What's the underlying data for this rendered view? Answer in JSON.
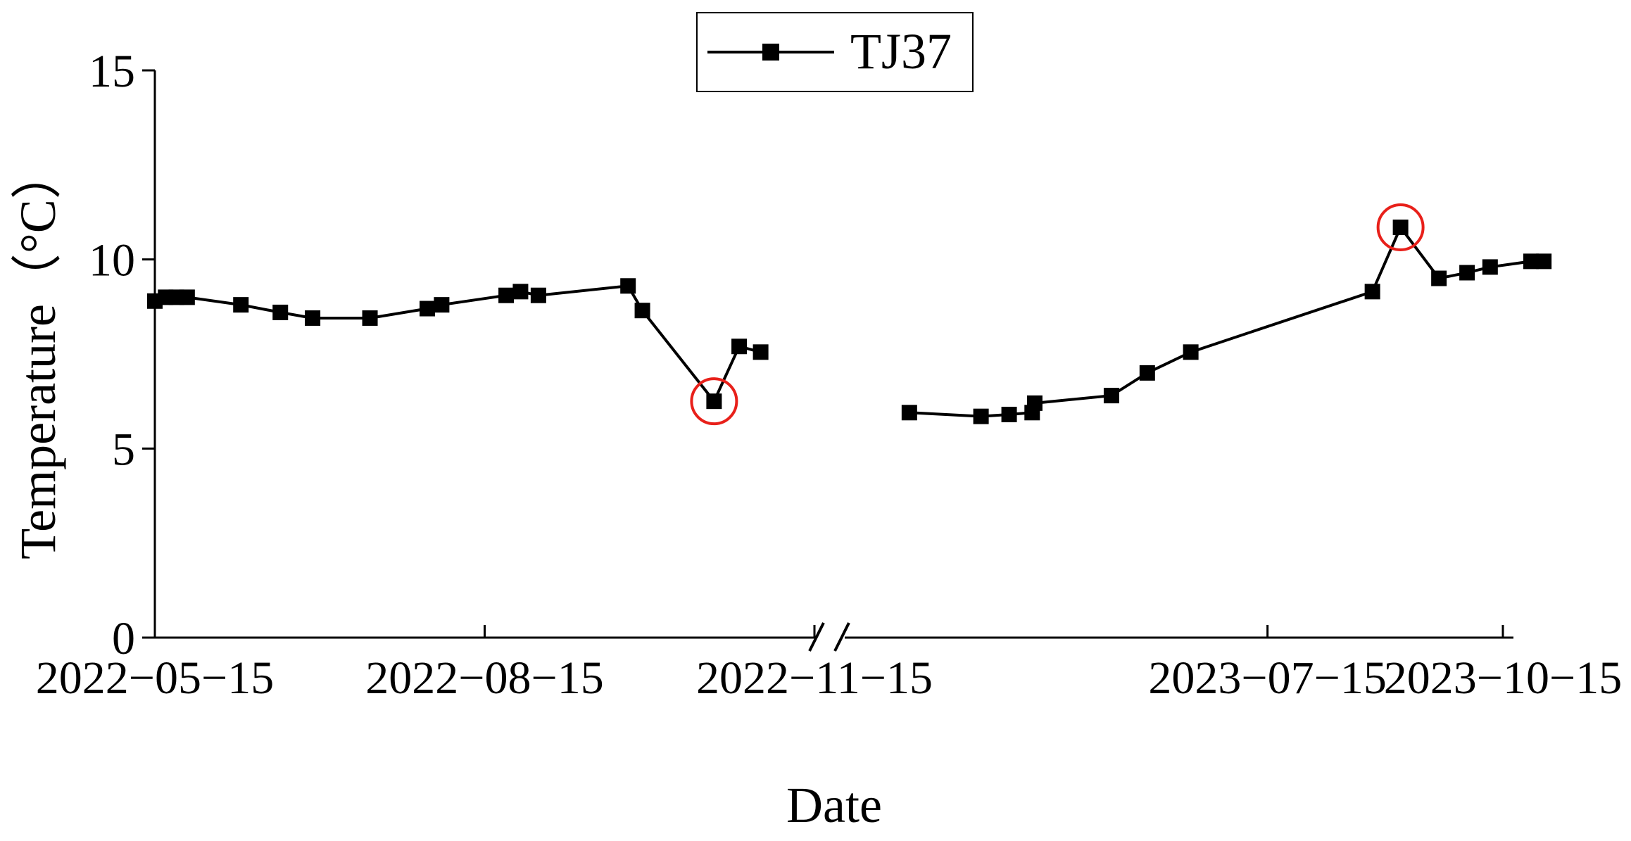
{
  "chart_data": {
    "type": "line",
    "title": "",
    "xlabel": "Date",
    "ylabel": "Temperature（°C）",
    "ylim": [
      0,
      15
    ],
    "yticks": [
      0,
      5,
      10,
      15
    ],
    "x_tick_labels": [
      "2022−05−15",
      "2022−08−15",
      "2022−11−15",
      "2023−07−15",
      "2023−10−15"
    ],
    "axis_break": "between 2022−11−15 and 2023−07−15",
    "legend_position": "top-center",
    "grid": false,
    "series": [
      {
        "name": "TJ37",
        "color": "#000000",
        "marker": "square",
        "segments": [
          {
            "x": [
              "2022-05-15",
              "2022-05-18",
              "2022-05-21",
              "2022-05-24",
              "2022-06-08",
              "2022-06-19",
              "2022-06-28",
              "2022-07-14",
              "2022-07-30",
              "2022-08-03",
              "2022-08-21",
              "2022-08-25",
              "2022-08-30",
              "2022-09-24",
              "2022-09-28",
              "2022-10-18",
              "2022-10-25",
              "2022-10-31"
            ],
            "y": [
              8.9,
              9.0,
              9.0,
              9.0,
              8.8,
              8.6,
              8.45,
              8.45,
              8.7,
              8.8,
              9.05,
              9.15,
              9.05,
              9.3,
              8.65,
              6.25,
              7.7,
              7.55
            ]
          },
          {
            "x": [
              "2023-02-25",
              "2023-03-25",
              "2023-04-05",
              "2023-04-14",
              "2023-04-15",
              "2023-05-15",
              "2023-05-29",
              "2023-06-15",
              "2023-08-25",
              "2023-09-05",
              "2023-09-20",
              "2023-10-01",
              "2023-10-10",
              "2023-10-26",
              "2023-10-31"
            ],
            "y": [
              5.95,
              5.85,
              5.9,
              5.95,
              6.2,
              6.4,
              7.0,
              7.55,
              9.15,
              10.85,
              9.5,
              9.65,
              9.8,
              9.95,
              9.95
            ]
          }
        ]
      }
    ],
    "annotations": [
      {
        "type": "circle",
        "color": "#e8201a",
        "x": "2022-10-18",
        "y": 6.25
      },
      {
        "type": "circle",
        "color": "#e8201a",
        "x": "2023-09-05",
        "y": 10.85
      }
    ]
  }
}
